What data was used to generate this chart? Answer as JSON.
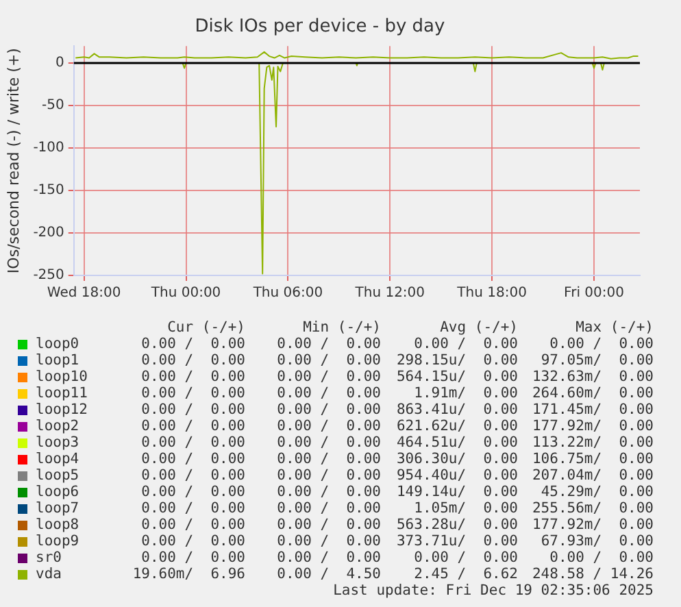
{
  "chart_data": {
    "type": "line",
    "title": "Disk IOs per device - by day",
    "ylabel": "IOs/second read (-) / write (+)",
    "xlim": [
      "2025-12-17T17:24",
      "2025-12-19T02:42"
    ],
    "xticks": [
      {
        "value": "2025-12-17T18:00",
        "label": "Wed 18:00"
      },
      {
        "value": "2025-12-18T00:00",
        "label": "Thu 00:00"
      },
      {
        "value": "2025-12-18T06:00",
        "label": "Thu 06:00"
      },
      {
        "value": "2025-12-18T12:00",
        "label": "Thu 12:00"
      },
      {
        "value": "2025-12-18T18:00",
        "label": "Thu 18:00"
      },
      {
        "value": "2025-12-19T00:00",
        "label": "Fri 00:00"
      }
    ],
    "ylim": [
      -250,
      20
    ],
    "yticks": [
      -250,
      -200,
      -150,
      -100,
      -50,
      0
    ],
    "grid": true,
    "legend": "bottom",
    "marker": "none",
    "line_style": "solid",
    "ref_lines": [
      {
        "axis": "y",
        "value": 0,
        "color": "#000000"
      }
    ],
    "series": [
      {
        "name": "loop0",
        "color": "#00cc00"
      },
      {
        "name": "loop1",
        "color": "#0066b3"
      },
      {
        "name": "loop10",
        "color": "#ff8000"
      },
      {
        "name": "loop11",
        "color": "#ffcc00"
      },
      {
        "name": "loop12",
        "color": "#330099"
      },
      {
        "name": "loop2",
        "color": "#990099"
      },
      {
        "name": "loop3",
        "color": "#ccff00"
      },
      {
        "name": "loop4",
        "color": "#ff0000"
      },
      {
        "name": "loop5",
        "color": "#808080"
      },
      {
        "name": "loop6",
        "color": "#008f00"
      },
      {
        "name": "loop7",
        "color": "#00487d"
      },
      {
        "name": "loop8",
        "color": "#b35a00"
      },
      {
        "name": "loop9",
        "color": "#b38f00"
      },
      {
        "name": "sr0",
        "color": "#6b006b"
      },
      {
        "name": "vda",
        "color": "#8fb300",
        "x": [
          "2025-12-17T17:30",
          "2025-12-17T18:00",
          "2025-12-17T18:18",
          "2025-12-17T18:36",
          "2025-12-17T18:54",
          "2025-12-17T19:30",
          "2025-12-17T20:30",
          "2025-12-17T21:30",
          "2025-12-17T22:30",
          "2025-12-17T23:30",
          "2025-12-17T23:54",
          "2025-12-18T00:30",
          "2025-12-18T01:30",
          "2025-12-18T02:30",
          "2025-12-18T03:30",
          "2025-12-18T04:12",
          "2025-12-18T04:36",
          "2025-12-18T04:54",
          "2025-12-18T05:12",
          "2025-12-18T05:30",
          "2025-12-18T05:48",
          "2025-12-18T06:12",
          "2025-12-18T07:00",
          "2025-12-18T08:00",
          "2025-12-18T09:00",
          "2025-12-18T10:00",
          "2025-12-18T11:00",
          "2025-12-18T12:00",
          "2025-12-18T13:00",
          "2025-12-18T14:00",
          "2025-12-18T15:00",
          "2025-12-18T16:00",
          "2025-12-18T17:00",
          "2025-12-18T18:00",
          "2025-12-18T19:00",
          "2025-12-18T20:00",
          "2025-12-18T21:00",
          "2025-12-18T22:04",
          "2025-12-18T22:30",
          "2025-12-18T23:00",
          "2025-12-19T00:00",
          "2025-12-19T00:30",
          "2025-12-19T01:00",
          "2025-12-19T01:30",
          "2025-12-19T02:00",
          "2025-12-19T02:18",
          "2025-12-19T02:36"
        ],
        "values": [
          6,
          7,
          6,
          11,
          7,
          7,
          6,
          7,
          6,
          6,
          7,
          6,
          6,
          7,
          6,
          7,
          13,
          8,
          6,
          9,
          6,
          8,
          7,
          6,
          7,
          6,
          7,
          6,
          6,
          7,
          6,
          6,
          7,
          6,
          7,
          6,
          6,
          12,
          7,
          6,
          6,
          7,
          5,
          6,
          6,
          8,
          8
        ]
      },
      {
        "color": "#8fb300",
        "x": [
          "2025-12-17T17:30",
          "2025-12-17T23:48",
          "2025-12-17T23:54",
          "2025-12-18T00:00",
          "2025-12-18T04:18",
          "2025-12-18T04:30",
          "2025-12-18T04:36",
          "2025-12-18T04:45",
          "2025-12-18T04:54",
          "2025-12-18T05:03",
          "2025-12-18T05:09",
          "2025-12-18T05:18",
          "2025-12-18T05:24",
          "2025-12-18T05:33",
          "2025-12-18T05:42",
          "2025-12-18T10:00",
          "2025-12-18T10:03",
          "2025-12-18T10:06",
          "2025-12-18T16:54",
          "2025-12-18T17:00",
          "2025-12-18T17:06",
          "2025-12-18T23:54",
          "2025-12-19T00:00",
          "2025-12-19T00:06",
          "2025-12-19T00:24",
          "2025-12-19T00:30",
          "2025-12-19T00:36",
          "2025-12-19T02:36"
        ],
        "values": [
          0,
          0,
          -6,
          0,
          0,
          -248,
          -30,
          -5,
          -3,
          -20,
          -5,
          -75,
          -4,
          -10,
          0,
          0,
          -3,
          0,
          0,
          -10,
          0,
          0,
          -6,
          0,
          0,
          -8,
          0,
          0
        ]
      }
    ],
    "annotations": [
      "Cur (-/+)",
      "Min (-/+)",
      "Avg (-/+)",
      "Max (-/+)",
      "0.00 /  0.00",
      "0.00 /  0.00",
      "0.00 /  0.00",
      "0.00 /  0.00",
      "0.00 /  0.00",
      "0.00 /  0.00",
      "298.15u/  0.00",
      "97.05m/  0.00",
      "0.00 /  0.00",
      "0.00 /  0.00",
      "564.15u/  0.00",
      "132.63m/  0.00",
      "0.00 /  0.00",
      "0.00 /  0.00",
      "1.91m/  0.00",
      "264.60m/  0.00",
      "0.00 /  0.00",
      "0.00 /  0.00",
      "863.41u/  0.00",
      "171.45m/  0.00",
      "0.00 /  0.00",
      "0.00 /  0.00",
      "621.62u/  0.00",
      "177.92m/  0.00",
      "0.00 /  0.00",
      "0.00 /  0.00",
      "464.51u/  0.00",
      "113.22m/  0.00",
      "0.00 /  0.00",
      "0.00 /  0.00",
      "306.30u/  0.00",
      "106.75m/  0.00",
      "0.00 /  0.00",
      "0.00 /  0.00",
      "954.40u/  0.00",
      "207.04m/  0.00",
      "0.00 /  0.00",
      "0.00 /  0.00",
      "149.14u/  0.00",
      "45.29m/  0.00",
      "0.00 /  0.00",
      "0.00 /  0.00",
      "1.05m/  0.00",
      "255.56m/  0.00",
      "0.00 /  0.00",
      "0.00 /  0.00",
      "563.28u/  0.00",
      "177.92m/  0.00",
      "0.00 /  0.00",
      "0.00 /  0.00",
      "373.71u/  0.00",
      "67.93m/  0.00",
      "0.00 /  0.00",
      "0.00 /  0.00",
      "0.00 /  0.00",
      "0.00 /  0.00",
      "19.60m/  6.96",
      "0.00 /  4.50",
      "2.45 /  6.62",
      "248.58 / 14.26",
      "Last update: Fri Dec 19 02:35:06 2025"
    ]
  }
}
